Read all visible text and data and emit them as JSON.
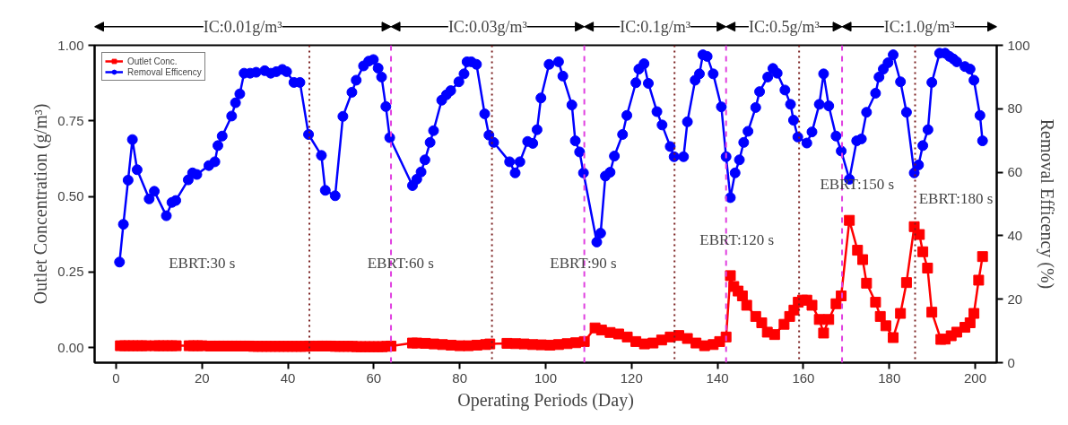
{
  "chart_data": {
    "type": "line",
    "xlabel": "Operating Periods (Day)",
    "ylabel": "Outlet Concentration (g/m³)",
    "y2label": "Removal Efficency (%)",
    "xlim": [
      -5,
      205
    ],
    "xticks": [
      0,
      20,
      40,
      60,
      80,
      100,
      120,
      140,
      160,
      180,
      200
    ],
    "ylim": [
      -0.05,
      1.0
    ],
    "yticks": [
      {
        "value": 0,
        "label": "0.00"
      },
      0.25,
      {
        "value": 0.5,
        "label": "0.50"
      },
      0.75,
      {
        "value": 1.0,
        "label": "1.00"
      }
    ],
    "y2lim": [
      0,
      100
    ],
    "y2ticks": [
      0,
      20,
      40,
      60,
      80,
      100
    ],
    "grid": false,
    "legend": "top left",
    "series": [
      {
        "name": "Outlet Conc.",
        "color": "#ff0000",
        "marker": "square",
        "x": [
          1,
          2,
          3,
          4,
          5,
          6,
          7,
          9,
          10,
          11,
          12,
          13,
          14,
          17,
          18,
          19,
          20,
          22,
          23,
          24,
          25,
          26,
          27,
          28,
          29,
          30,
          31,
          32,
          33,
          34,
          35,
          36,
          37,
          38,
          39,
          40,
          41,
          42,
          43,
          44,
          45,
          47,
          48,
          49,
          50,
          51,
          52,
          53,
          54,
          55,
          56,
          57,
          58,
          59,
          60,
          61,
          62,
          63,
          64,
          69,
          70,
          72,
          74,
          76,
          78,
          80,
          82,
          84,
          86,
          87,
          91,
          93,
          95,
          97,
          99,
          101,
          103,
          105,
          107,
          109,
          111.5,
          113,
          115,
          117,
          119,
          121,
          123,
          125,
          127,
          129,
          131,
          133,
          135,
          137,
          139,
          140.5,
          142,
          143,
          143.8,
          144.8,
          145.8,
          146.8,
          148.9,
          150.3,
          151.6,
          153.3,
          155.5,
          156.8,
          157.8,
          158.8,
          159.8,
          160.8,
          162,
          163.7,
          164.7,
          165.9,
          167.6,
          168.8,
          170.7,
          172.6,
          173.8,
          174.7,
          176.8,
          177.9,
          179.2,
          180.9,
          182.6,
          184,
          185.8,
          187,
          187.8,
          188.9,
          189.9,
          192,
          193,
          194.4,
          195.7,
          197.6,
          198.8,
          199.7,
          200.8,
          201.7
        ],
        "values": [
          0.006,
          0.006,
          0.006,
          0.006,
          0.006,
          0.006,
          0.006,
          0.006,
          0.006,
          0.006,
          0.006,
          0.006,
          0.006,
          0.006,
          0.006,
          0.006,
          0.006,
          0.005,
          0.005,
          0.005,
          0.005,
          0.005,
          0.005,
          0.005,
          0.005,
          0.005,
          0.005,
          0.004,
          0.004,
          0.004,
          0.004,
          0.004,
          0.004,
          0.004,
          0.004,
          0.004,
          0.004,
          0.004,
          0.004,
          0.004,
          0.005,
          0.005,
          0.005,
          0.005,
          0.005,
          0.004,
          0.004,
          0.004,
          0.004,
          0.004,
          0.003,
          0.003,
          0.003,
          0.003,
          0.003,
          0.003,
          0.003,
          0.004,
          0.005,
          0.015,
          0.015,
          0.014,
          0.012,
          0.01,
          0.008,
          0.006,
          0.006,
          0.008,
          0.01,
          0.012,
          0.014,
          0.013,
          0.012,
          0.01,
          0.009,
          0.008,
          0.01,
          0.013,
          0.016,
          0.02,
          0.065,
          0.058,
          0.05,
          0.045,
          0.035,
          0.02,
          0.012,
          0.015,
          0.025,
          0.035,
          0.04,
          0.03,
          0.015,
          0.006,
          0.01,
          0.02,
          0.035,
          0.238,
          0.202,
          0.187,
          0.171,
          0.14,
          0.103,
          0.082,
          0.051,
          0.043,
          0.077,
          0.103,
          0.124,
          0.15,
          0.157,
          0.157,
          0.14,
          0.093,
          0.048,
          0.093,
          0.145,
          0.171,
          0.421,
          0.322,
          0.291,
          0.213,
          0.15,
          0.103,
          0.072,
          0.033,
          0.113,
          0.215,
          0.4,
          0.374,
          0.317,
          0.263,
          0.117,
          0.027,
          0.028,
          0.039,
          0.051,
          0.067,
          0.082,
          0.113,
          0.223,
          0.301
        ]
      },
      {
        "name": "Removal Efficency",
        "color": "#0000ff",
        "marker": "circle",
        "axis": "y2",
        "x": [
          0.8,
          1.7,
          2.8,
          3.8,
          4.9,
          7.7,
          8.9,
          11.7,
          13,
          13.9,
          16.8,
          17.8,
          18.8,
          21.6,
          23,
          23.7,
          24.7,
          26.9,
          27.8,
          28.8,
          29.8,
          31.2,
          32.6,
          34.6,
          36,
          37.3,
          38.7,
          39.7,
          41.4,
          42.8,
          44.8,
          47.8,
          48.7,
          51,
          52.8,
          54.9,
          55.9,
          57.6,
          58.8,
          59.9,
          61,
          61.8,
          62.8,
          63.7,
          69,
          70,
          71,
          71.9,
          73.1,
          73.9,
          75.8,
          76.9,
          77.9,
          79.8,
          81,
          81.7,
          82.7,
          83.9,
          85.8,
          86.8,
          87.9,
          91.6,
          92.9,
          94,
          95.8,
          97,
          98,
          98.9,
          100.8,
          103,
          104,
          106.1,
          106.9,
          107.9,
          108.8,
          111.9,
          112.8,
          113.9,
          115,
          116,
          117.9,
          118.9,
          121,
          121.7,
          122.9,
          123.9,
          125.9,
          127.1,
          129,
          129.9,
          132.1,
          133,
          134.8,
          135.8,
          136.6,
          137.6,
          139,
          140.9,
          142,
          143,
          144.1,
          145.1,
          146.1,
          147.1,
          148.9,
          149.8,
          151.7,
          152.9,
          153.9,
          155.7,
          157,
          157.7,
          158.7,
          160.8,
          162,
          163.7,
          164.7,
          165.9,
          167.6,
          168.8,
          170.7,
          172.4,
          173.5,
          174.7,
          176.8,
          177.6,
          178.6,
          179.7,
          180.9,
          182.6,
          184,
          185.8,
          186.8,
          187.8,
          189,
          189.9,
          191.7,
          193,
          194,
          194.9,
          195.7,
          197.6,
          198.8,
          199.7,
          201.1,
          201.7
        ],
        "values": [
          31.7,
          43.6,
          57.5,
          70.3,
          60.8,
          51.6,
          54,
          46.3,
          50.5,
          51.1,
          57.6,
          59.8,
          59.3,
          62.1,
          63.3,
          68.4,
          71.4,
          77.7,
          81.9,
          84.7,
          91.2,
          91.2,
          91.5,
          92,
          91.2,
          91.7,
          92.4,
          91.7,
          88.3,
          88.3,
          71.9,
          65.3,
          54.3,
          52.6,
          77.6,
          85.2,
          89,
          93.5,
          95,
          95.5,
          92.8,
          90,
          80.7,
          70.9,
          55.8,
          57.8,
          60.1,
          63.9,
          69.4,
          73.1,
          82.7,
          84.4,
          85.7,
          88.5,
          91,
          94.8,
          94.8,
          94,
          78.4,
          71.7,
          69.4,
          63.3,
          59.8,
          63.3,
          69.7,
          69.1,
          73.4,
          83.4,
          94,
          94.8,
          90.3,
          81.2,
          69.9,
          66.4,
          59.8,
          38,
          40.8,
          58.8,
          60,
          65.1,
          71.9,
          77.9,
          88.2,
          92.5,
          94.2,
          88,
          79.1,
          74.9,
          68.1,
          64.9,
          64.9,
          75.9,
          89,
          91,
          97,
          96.5,
          91,
          80.6,
          64.9,
          52,
          59.8,
          63.9,
          69.4,
          72.9,
          80.4,
          85.4,
          90,
          92.7,
          91.2,
          85.9,
          81.4,
          76.4,
          71.1,
          69.2,
          72.7,
          81.4,
          91,
          80.9,
          71.4,
          66.7,
          57.8,
          69.9,
          70.5,
          78.9,
          84.9,
          90,
          92.5,
          94.5,
          97,
          88.5,
          78.9,
          59.8,
          62.3,
          68.4,
          73.4,
          88.3,
          97.5,
          97.5,
          96.5,
          95.7,
          94.8,
          93.3,
          92.5,
          89,
          77.9,
          69.9
        ]
      }
    ],
    "ref_lines": [
      {
        "axis": "x",
        "value": 45,
        "color": "#7a1f1f",
        "line_style": "dotted"
      },
      {
        "axis": "x",
        "value": 87.5,
        "color": "#7a1f1f",
        "line_style": "dotted"
      },
      {
        "axis": "x",
        "value": 130,
        "color": "#7a1f1f",
        "line_style": "dotted"
      },
      {
        "axis": "x",
        "value": 159,
        "color": "#7a1f1f",
        "line_style": "dotted"
      },
      {
        "axis": "x",
        "value": 186,
        "color": "#7a1f1f",
        "line_style": "dotted"
      },
      {
        "axis": "x",
        "value": 64,
        "color": "#e040e0",
        "line_style": "dashed"
      },
      {
        "axis": "x",
        "value": 109,
        "color": "#e040e0",
        "line_style": "dashed"
      },
      {
        "axis": "x",
        "value": 142,
        "color": "#e040e0",
        "line_style": "dashed"
      },
      {
        "axis": "x",
        "value": 169,
        "color": "#e040e0",
        "line_style": "dashed"
      }
    ],
    "annotations": [
      "IC:0.01g/m³",
      "IC:0.03g/m³",
      "IC:0.1g/m³",
      "IC:0.5g/m³",
      "IC:1.0g/m³",
      "EBRT:30 s",
      "EBRT:60 s",
      "EBRT:90 s",
      "EBRT:120 s",
      "EBRT:150 s",
      "EBRT:180 s"
    ]
  }
}
